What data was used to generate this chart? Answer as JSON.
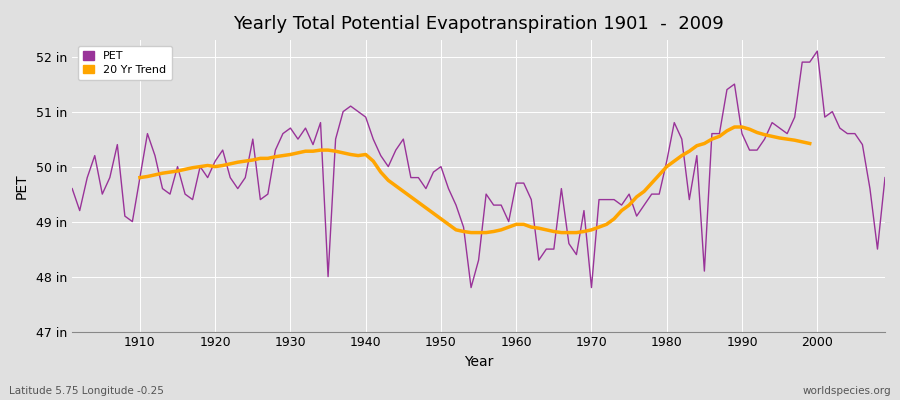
{
  "title": "Yearly Total Potential Evapotranspiration 1901  -  2009",
  "xlabel": "Year",
  "ylabel": "PET",
  "subtitle": "Latitude 5.75 Longitude -0.25",
  "watermark": "worldspecies.org",
  "pet_color": "#993399",
  "trend_color": "#FFA500",
  "bg_color": "#E0E0E0",
  "years": [
    1901,
    1902,
    1903,
    1904,
    1905,
    1906,
    1907,
    1908,
    1909,
    1910,
    1911,
    1912,
    1913,
    1914,
    1915,
    1916,
    1917,
    1918,
    1919,
    1920,
    1921,
    1922,
    1923,
    1924,
    1925,
    1926,
    1927,
    1928,
    1929,
    1930,
    1931,
    1932,
    1933,
    1934,
    1935,
    1936,
    1937,
    1938,
    1939,
    1940,
    1941,
    1942,
    1943,
    1944,
    1945,
    1946,
    1947,
    1948,
    1949,
    1950,
    1951,
    1952,
    1953,
    1954,
    1955,
    1956,
    1957,
    1958,
    1959,
    1960,
    1961,
    1962,
    1963,
    1964,
    1965,
    1966,
    1967,
    1968,
    1969,
    1970,
    1971,
    1972,
    1973,
    1974,
    1975,
    1976,
    1977,
    1978,
    1979,
    1980,
    1981,
    1982,
    1983,
    1984,
    1985,
    1986,
    1987,
    1988,
    1989,
    1990,
    1991,
    1992,
    1993,
    1994,
    1995,
    1996,
    1997,
    1998,
    1999,
    2000,
    2001,
    2002,
    2003,
    2004,
    2005,
    2006,
    2007,
    2008,
    2009
  ],
  "pet_values": [
    49.6,
    49.2,
    49.8,
    50.2,
    49.5,
    49.8,
    50.4,
    49.1,
    49.0,
    49.8,
    50.6,
    50.2,
    49.6,
    49.5,
    50.0,
    49.5,
    49.4,
    50.0,
    49.8,
    50.1,
    50.3,
    49.8,
    49.6,
    49.8,
    50.5,
    49.4,
    49.5,
    50.3,
    50.6,
    50.7,
    50.5,
    50.7,
    50.4,
    50.8,
    48.0,
    50.5,
    51.0,
    51.1,
    51.0,
    50.9,
    50.5,
    50.2,
    50.0,
    50.3,
    50.5,
    49.8,
    49.8,
    49.6,
    49.9,
    50.0,
    49.6,
    49.3,
    48.9,
    47.8,
    48.3,
    49.5,
    49.3,
    49.3,
    49.0,
    49.7,
    49.7,
    49.4,
    48.3,
    48.5,
    48.5,
    49.6,
    48.6,
    48.4,
    49.2,
    47.8,
    49.4,
    49.4,
    49.4,
    49.3,
    49.5,
    49.1,
    49.3,
    49.5,
    49.5,
    50.1,
    50.8,
    50.5,
    49.4,
    50.2,
    48.1,
    50.6,
    50.6,
    51.4,
    51.5,
    50.6,
    50.3,
    50.3,
    50.5,
    50.8,
    50.7,
    50.6,
    50.9,
    51.9,
    51.9,
    52.1,
    50.9,
    51.0,
    50.7,
    50.6,
    50.6,
    50.4,
    49.6,
    48.5,
    49.8
  ],
  "trend_values": [
    null,
    null,
    null,
    null,
    null,
    null,
    null,
    null,
    null,
    49.8,
    49.82,
    49.85,
    49.88,
    49.9,
    49.92,
    49.95,
    49.98,
    50.0,
    50.02,
    50.0,
    50.02,
    50.05,
    50.08,
    50.1,
    50.12,
    50.15,
    50.15,
    50.18,
    50.2,
    50.22,
    50.25,
    50.28,
    50.28,
    50.3,
    50.3,
    50.28,
    50.25,
    50.22,
    50.2,
    50.22,
    50.1,
    49.9,
    49.75,
    49.65,
    49.55,
    49.45,
    49.35,
    49.25,
    49.15,
    49.05,
    48.95,
    48.85,
    48.82,
    48.8,
    48.8,
    48.8,
    48.82,
    48.85,
    48.9,
    48.95,
    48.95,
    48.9,
    48.88,
    48.85,
    48.82,
    48.8,
    48.8,
    48.8,
    48.82,
    48.85,
    48.9,
    48.95,
    49.05,
    49.2,
    49.3,
    49.45,
    49.55,
    49.7,
    49.85,
    50.0,
    50.1,
    50.2,
    50.28,
    50.38,
    50.42,
    50.5,
    50.55,
    50.65,
    50.72,
    50.72,
    50.68,
    50.62,
    50.58,
    50.55,
    50.52,
    50.5,
    50.48,
    50.45,
    50.42,
    null,
    null,
    null,
    null,
    null,
    null,
    null,
    null,
    null,
    null
  ],
  "ylim": [
    47.0,
    52.3
  ],
  "yticks": [
    47,
    48,
    49,
    50,
    51,
    52
  ],
  "ytick_labels": [
    "47 in",
    "48 in",
    "49 in",
    "50 in",
    "51 in",
    "52 in"
  ],
  "xtick_start": 1910,
  "xtick_end": 2010,
  "xtick_step": 10
}
